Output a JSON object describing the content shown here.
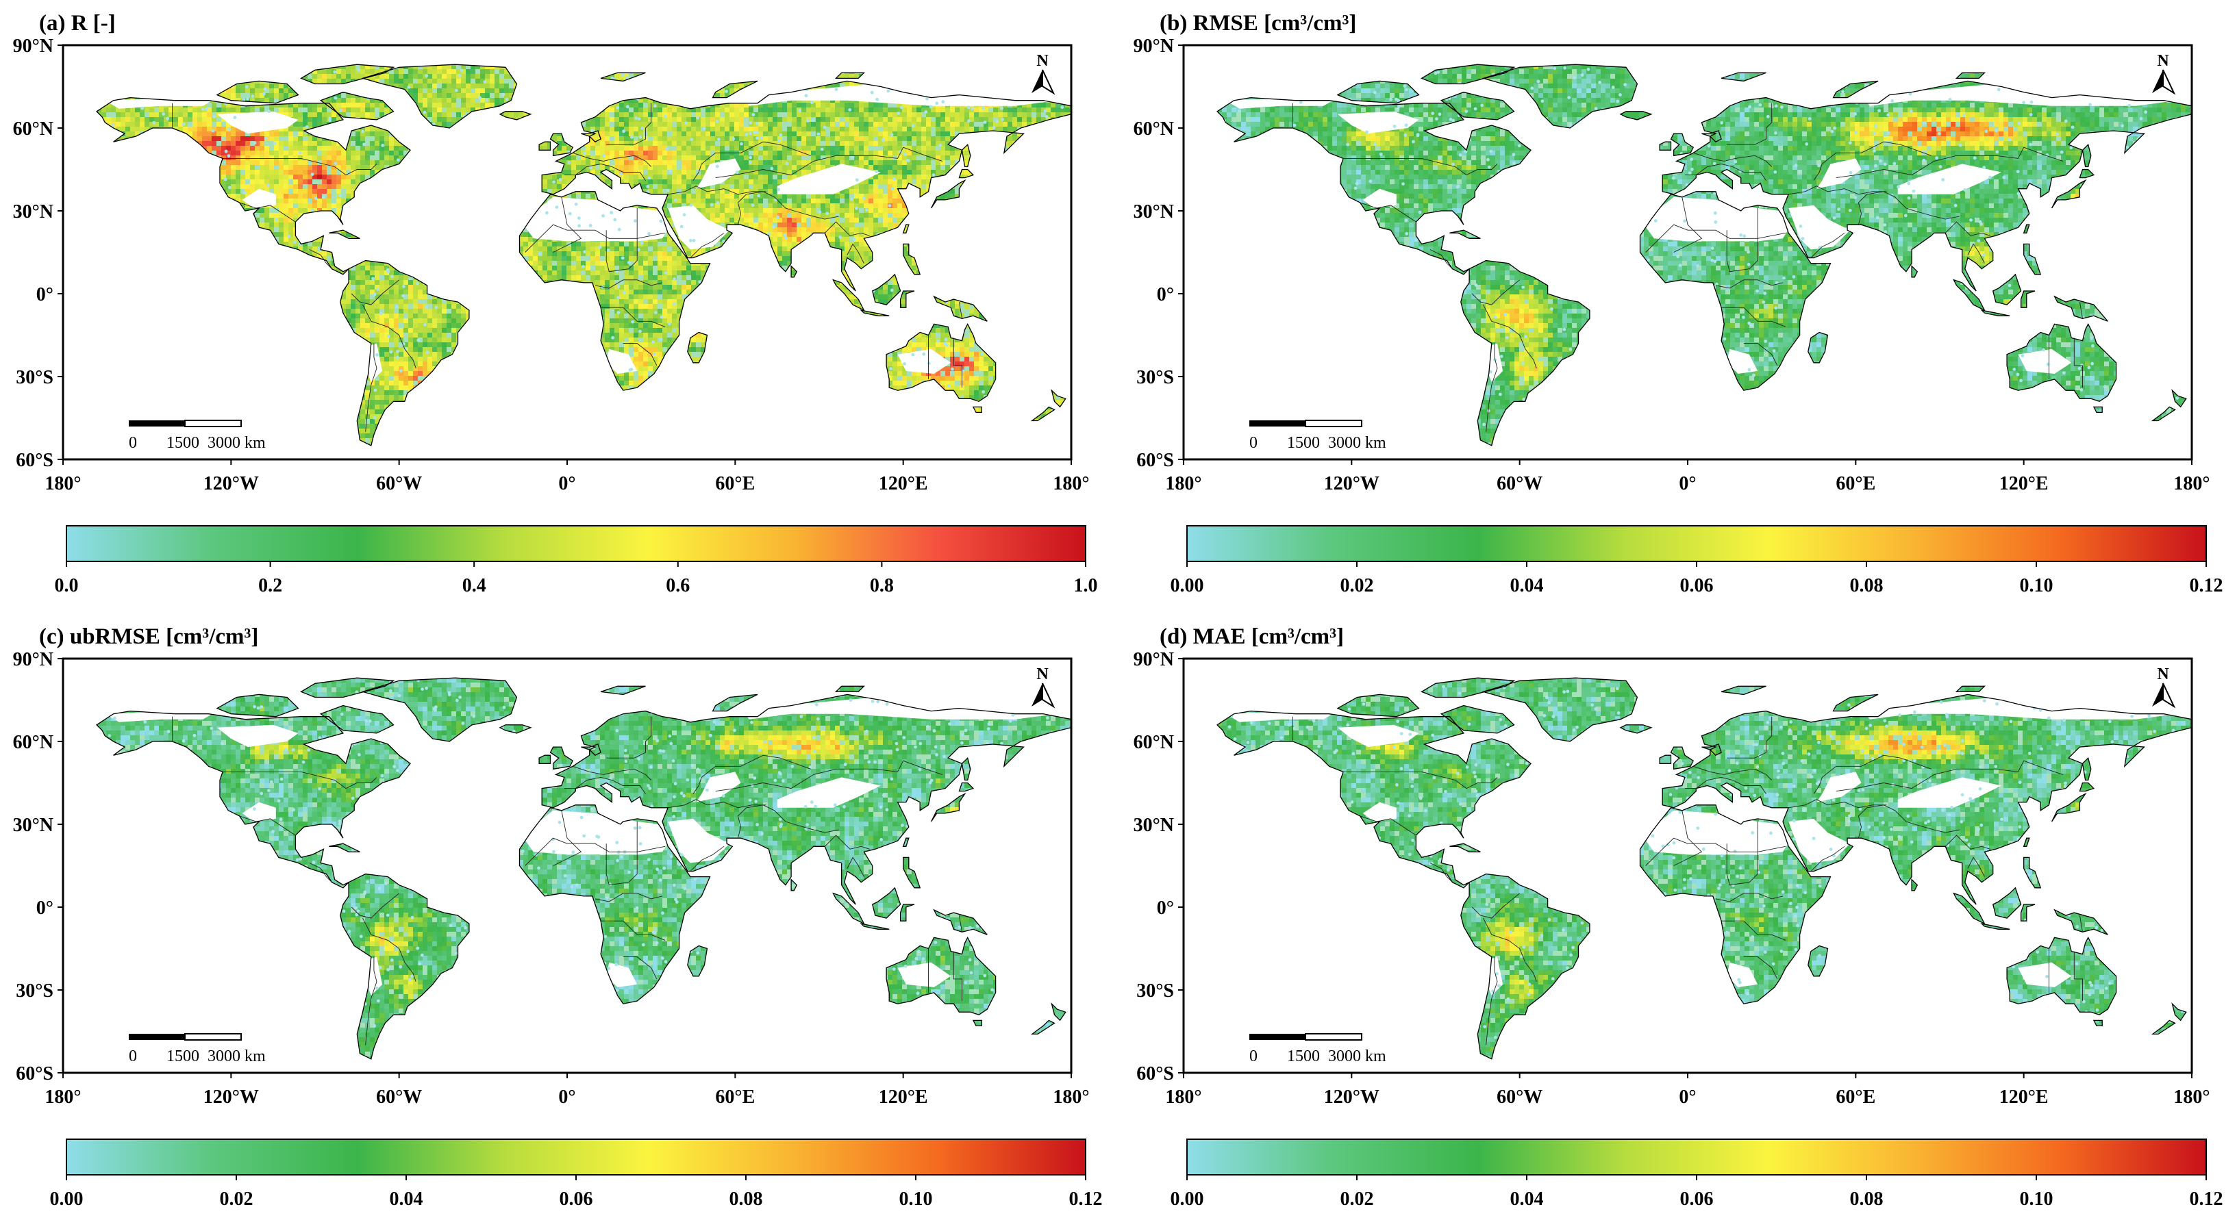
{
  "figure": {
    "lat_labels": [
      "90°N",
      "60°N",
      "30°N",
      "0°",
      "30°S",
      "60°S"
    ],
    "lon_labels": [
      "180°",
      "120°W",
      "60°W",
      "0°",
      "60°E",
      "120°E",
      "180°"
    ],
    "north_arrow_label": "N",
    "scale_bar": {
      "ticks": [
        "0",
        "1500",
        "3000"
      ],
      "unit": "km"
    },
    "colormap": [
      "#8fdde9",
      "#5cc77e",
      "#3cb54a",
      "#b6dc3e",
      "#fbf43f",
      "#f9b432",
      "#f4691f",
      "#c8121b"
    ]
  },
  "panels": [
    {
      "title": "(a) R [-]",
      "colorbar_ticks": [
        "0.0",
        "0.2",
        "0.4",
        "0.6",
        "0.8",
        "1.0"
      ],
      "colorbar_range": [
        0,
        1
      ],
      "colormap_override": [
        "#8fdde9",
        "#5cc77e",
        "#3cb54a",
        "#b6dc3e",
        "#fbf43f",
        "#f9b432",
        "#f4503f",
        "#c8121b"
      ]
    },
    {
      "title": "(b) RMSE [cm³/cm³]",
      "colorbar_ticks": [
        "0.00",
        "0.02",
        "0.04",
        "0.06",
        "0.08",
        "0.10",
        "0.12"
      ],
      "colorbar_range": [
        0,
        0.12
      ]
    },
    {
      "title": "(c) ubRMSE [cm³/cm³]",
      "colorbar_ticks": [
        "0.00",
        "0.02",
        "0.04",
        "0.06",
        "0.08",
        "0.10",
        "0.12"
      ],
      "colorbar_range": [
        0,
        0.12
      ]
    },
    {
      "title": "(d) MAE [cm³/cm³]",
      "colorbar_ticks": [
        "0.00",
        "0.02",
        "0.04",
        "0.06",
        "0.08",
        "0.10",
        "0.12"
      ],
      "colorbar_range": [
        0,
        0.12
      ]
    }
  ]
}
